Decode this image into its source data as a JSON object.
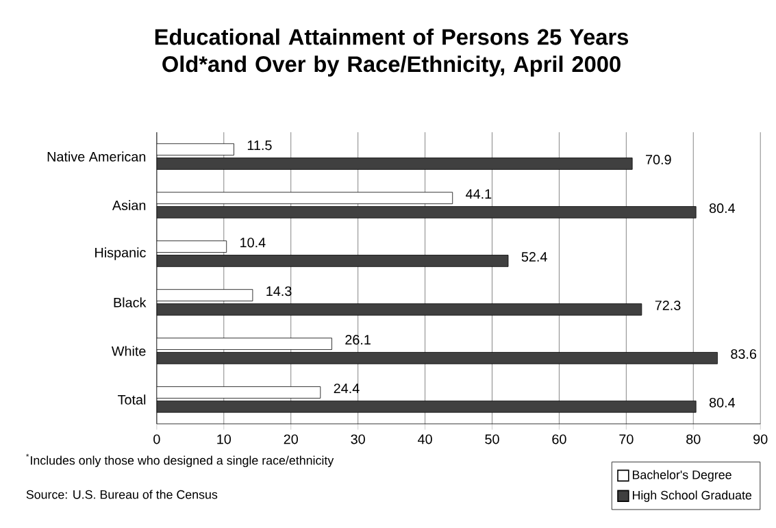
{
  "chart_data": {
    "type": "bar",
    "orientation": "horizontal",
    "title": "Educational Attainment of Persons 25 Years Old*and Over by Race/Ethnicity, April 2000",
    "categories": [
      "Native American",
      "Asian",
      "Hispanic",
      "Black",
      "White",
      "Total"
    ],
    "series": [
      {
        "name": "Bachelor's Degree",
        "color": "#ffffff",
        "values": [
          11.5,
          44.1,
          10.4,
          14.3,
          26.1,
          24.4
        ]
      },
      {
        "name": "High School Graduate",
        "color": "#404040",
        "values": [
          70.9,
          80.4,
          52.4,
          72.3,
          83.6,
          80.4
        ]
      }
    ],
    "xlim": [
      0,
      90
    ],
    "xticks": [
      0,
      10,
      20,
      30,
      40,
      50,
      60,
      70,
      80,
      90
    ],
    "grid": "x",
    "legend": "bottom right",
    "data_labels": true,
    "annotations": [
      "$^{*}$Includes only those who designed a single race/ethnicity",
      "Source:  U.S. Bureau of the Census"
    ]
  }
}
